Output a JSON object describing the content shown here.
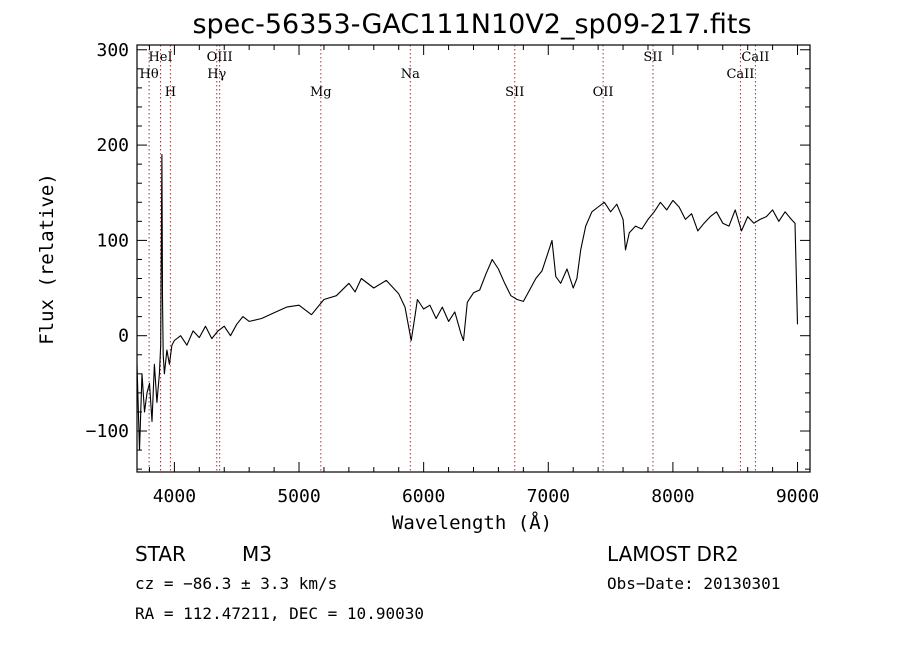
{
  "chart_data": {
    "type": "line",
    "title": "spec-56353-GAC111N10V2_sp09-217.fits",
    "xlabel": "Wavelength (Å)",
    "ylabel": "Flux (relative)",
    "xlim": [
      3700,
      9100
    ],
    "ylim": [
      -143,
      305
    ],
    "x_ticks": [
      4000,
      5000,
      6000,
      7000,
      8000,
      9000
    ],
    "y_ticks": [
      -100,
      0,
      100,
      200,
      300
    ],
    "grid": false,
    "line_color": "#000000",
    "marker_color": "#b03030",
    "series": [
      {
        "x": [
          3700,
          3720,
          3740,
          3760,
          3780,
          3800,
          3820,
          3840,
          3860,
          3880,
          3890,
          3900,
          3905,
          3910,
          3920,
          3940,
          3960,
          3980,
          4000,
          4050,
          4100,
          4150,
          4200,
          4250,
          4300,
          4350,
          4400,
          4450,
          4500,
          4550,
          4600,
          4700,
          4800,
          4900,
          5000,
          5100,
          5200,
          5300,
          5400,
          5450,
          5500,
          5600,
          5700,
          5800,
          5850,
          5900,
          5930,
          5950,
          6000,
          6050,
          6100,
          6150,
          6200,
          6250,
          6300,
          6320,
          6350,
          6400,
          6450,
          6500,
          6550,
          6600,
          6650,
          6700,
          6750,
          6800,
          6850,
          6900,
          6950,
          7000,
          7030,
          7060,
          7100,
          7150,
          7200,
          7230,
          7260,
          7300,
          7350,
          7400,
          7450,
          7500,
          7550,
          7600,
          7620,
          7650,
          7700,
          7750,
          7800,
          7850,
          7900,
          7950,
          8000,
          8050,
          8100,
          8150,
          8200,
          8250,
          8300,
          8350,
          8400,
          8450,
          8500,
          8550,
          8600,
          8650,
          8700,
          8750,
          8800,
          8850,
          8900,
          8950,
          8980,
          9000
        ],
        "y": [
          -30,
          -120,
          -40,
          -80,
          -60,
          -50,
          -90,
          -30,
          -70,
          -40,
          -10,
          190,
          40,
          -20,
          -40,
          -15,
          -30,
          -10,
          -5,
          0,
          -10,
          5,
          -2,
          10,
          -3,
          5,
          10,
          0,
          12,
          20,
          15,
          18,
          24,
          30,
          32,
          22,
          38,
          42,
          55,
          46,
          60,
          50,
          58,
          44,
          30,
          -5,
          20,
          38,
          28,
          32,
          18,
          30,
          15,
          25,
          2,
          -5,
          35,
          45,
          48,
          65,
          80,
          70,
          55,
          42,
          38,
          36,
          48,
          60,
          68,
          88,
          100,
          62,
          55,
          70,
          50,
          60,
          90,
          115,
          130,
          135,
          140,
          130,
          138,
          122,
          90,
          108,
          115,
          112,
          122,
          130,
          140,
          132,
          142,
          135,
          122,
          128,
          110,
          118,
          125,
          130,
          118,
          115,
          132,
          110,
          125,
          118,
          122,
          125,
          132,
          120,
          130,
          122,
          118,
          12
        ]
      }
    ],
    "line_markers": [
      {
        "label": "Hθ",
        "x": 3797,
        "row": 2
      },
      {
        "label": "HeI",
        "x": 3889,
        "row": 1
      },
      {
        "label": "H",
        "x": 3968,
        "row": 3
      },
      {
        "label": "OIII",
        "x": 4363,
        "row": 1
      },
      {
        "label": "Hγ",
        "x": 4340,
        "row": 2
      },
      {
        "label": "Mg",
        "x": 5175,
        "row": 3
      },
      {
        "label": "Na",
        "x": 5893,
        "row": 2
      },
      {
        "label": "SII",
        "x": 6731,
        "row": 3
      },
      {
        "label": "OII",
        "x": 7440,
        "row": 3
      },
      {
        "label": "SII",
        "x": 7840,
        "row": 1
      },
      {
        "label": "CaII",
        "x": 8542,
        "row": 2
      },
      {
        "label": "CaII",
        "x": 8662,
        "row": 1
      }
    ]
  },
  "info": {
    "object_type": "STAR",
    "subclass": "M3",
    "survey": "LAMOST DR2",
    "redshift": "cz = −86.3 ± 3.3 km/s",
    "obs_date": "Obs−Date: 20130301",
    "coords": "RA = 112.47211, DEC =  10.90030"
  }
}
